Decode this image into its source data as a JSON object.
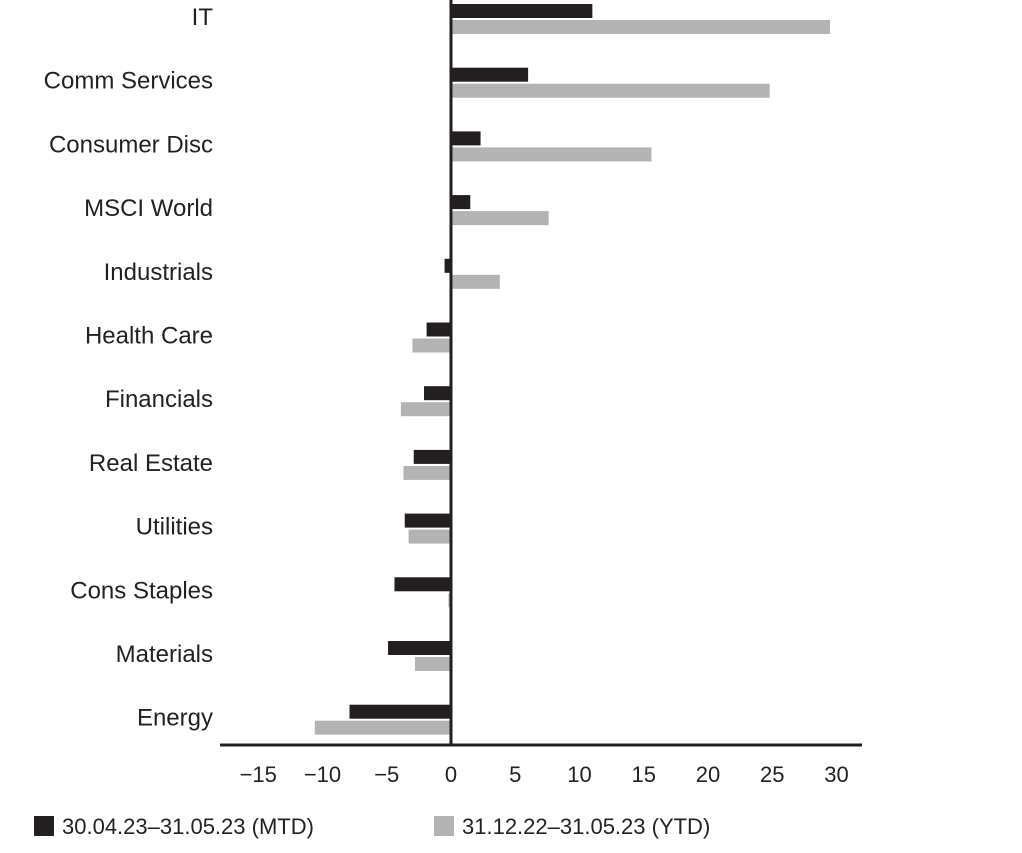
{
  "chart_data": {
    "type": "bar",
    "orientation": "horizontal",
    "title": "",
    "xlabel": "",
    "ylabel": "",
    "categories": [
      "IT",
      "Comm Services",
      "Consumer Disc",
      "MSCI World",
      "Industrials",
      "Health Care",
      "Financials",
      "Real Estate",
      "Utilities",
      "Cons Staples",
      "Materials",
      "Energy"
    ],
    "series": [
      {
        "name": "30.04.23–31.05.23 (MTD)",
        "color": "#231f20",
        "values": [
          11.0,
          6.0,
          2.3,
          1.5,
          -0.5,
          -1.9,
          -2.1,
          -2.9,
          -3.6,
          -4.4,
          -4.9,
          -7.9
        ]
      },
      {
        "name": "31.12.22–31.05.23 (YTD)",
        "color": "#b3b3b3",
        "values": [
          29.5,
          24.8,
          15.6,
          7.6,
          3.8,
          -3.0,
          -3.9,
          -3.7,
          -3.3,
          -0.2,
          -2.8,
          -10.6
        ]
      }
    ],
    "xlim": [
      -17,
      32
    ],
    "xticks": [
      -15,
      -10,
      -5,
      0,
      5,
      10,
      15,
      20,
      25,
      30
    ],
    "xtick_labels": [
      "−15",
      "−10",
      "−5",
      "0",
      "5",
      "10",
      "15",
      "20",
      "25",
      "30"
    ],
    "grid": false,
    "legend_position": "bottom-left"
  }
}
